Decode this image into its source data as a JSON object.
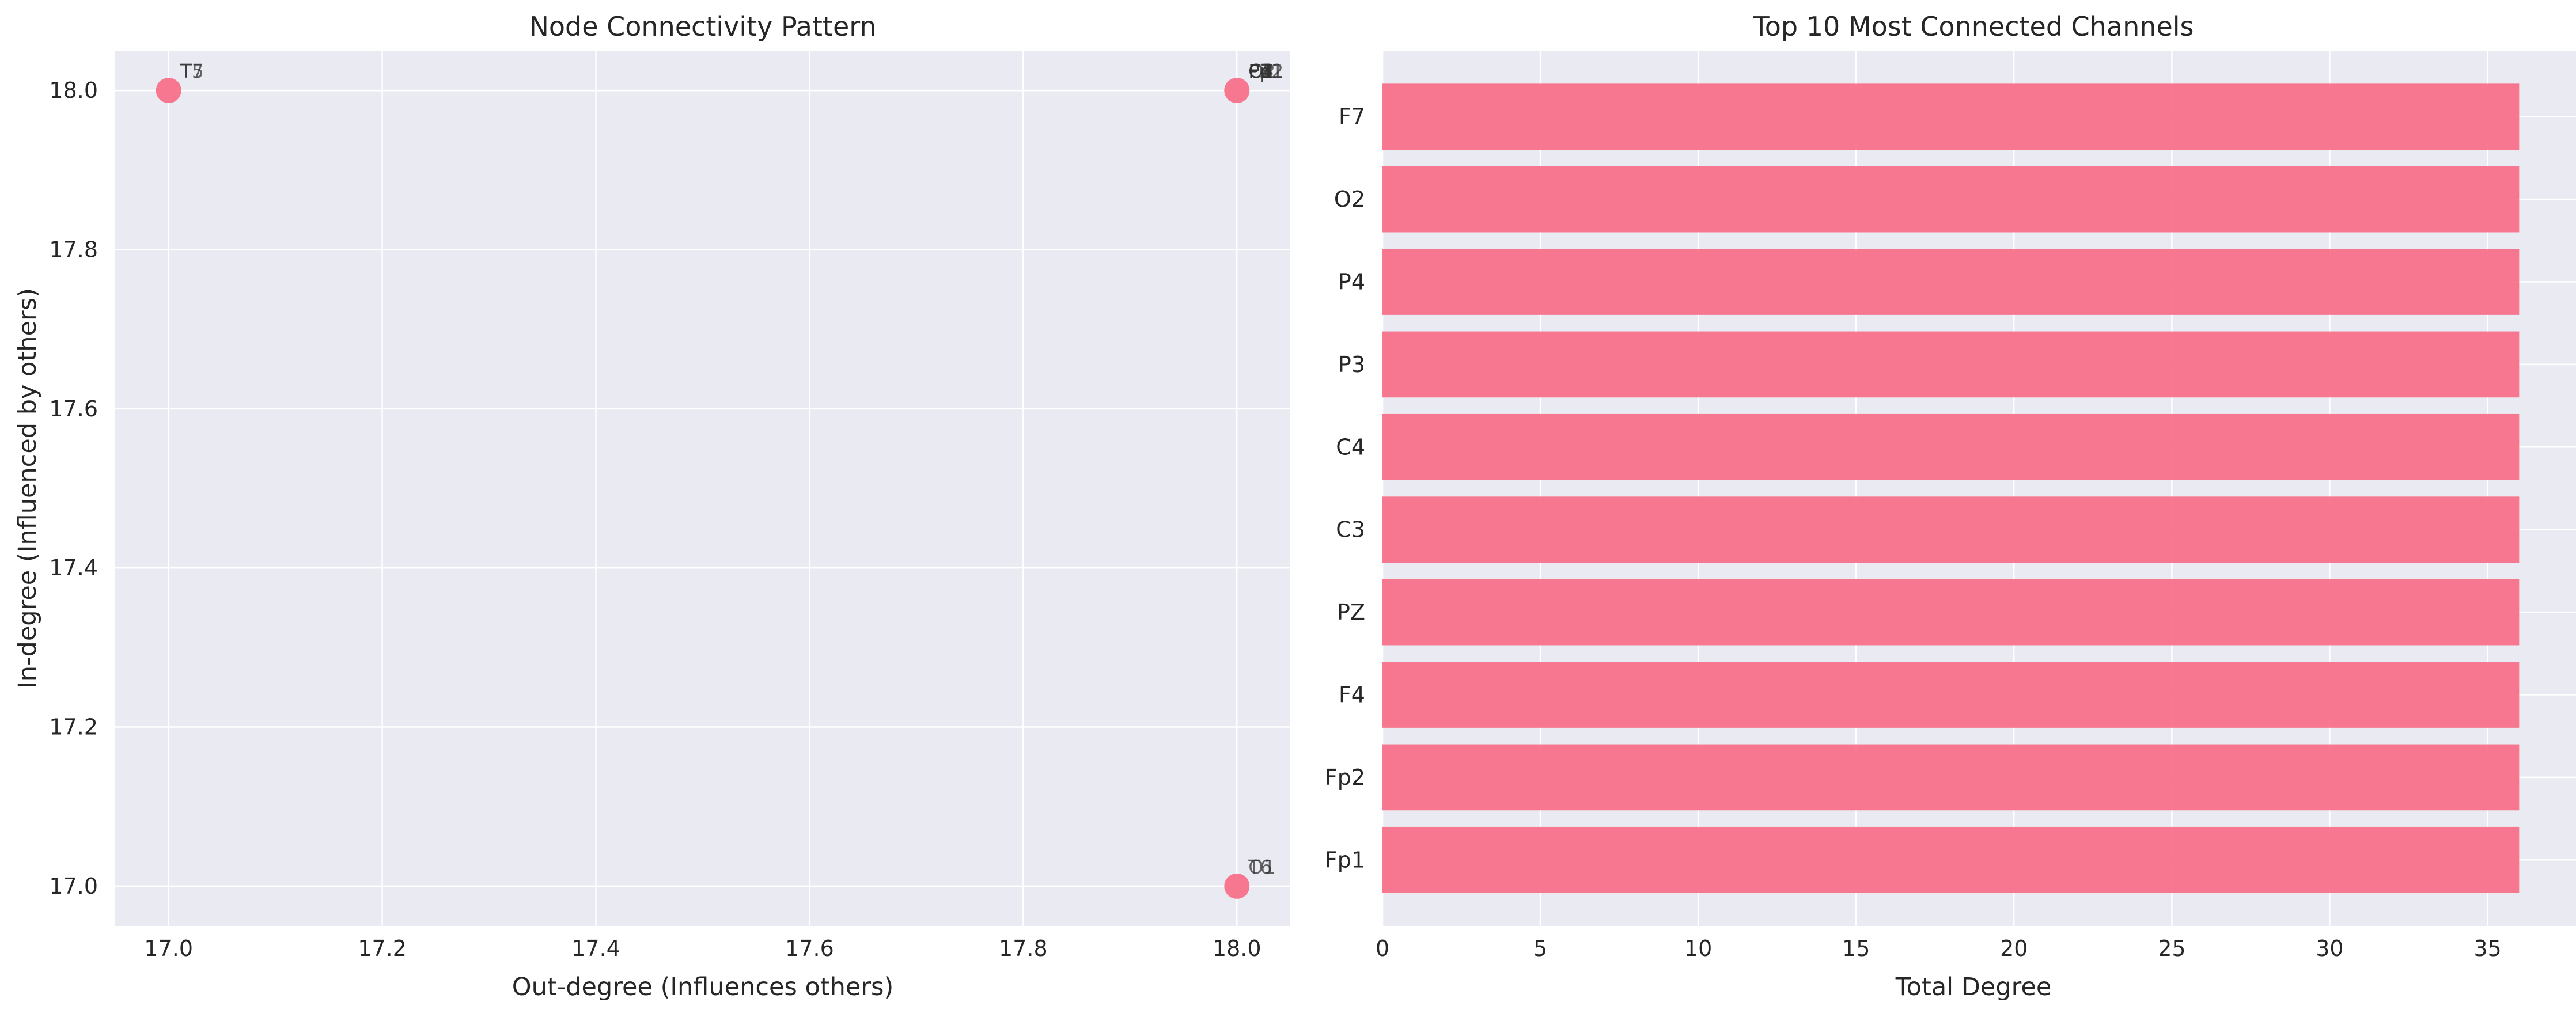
{
  "style": {
    "plot_bg": "#eaeaf2",
    "grid": "#ffffff",
    "accent": "#f77189"
  },
  "chart_data": [
    {
      "type": "scatter",
      "title": "Node Connectivity Pattern",
      "xlabel": "Out-degree (Influences others)",
      "ylabel": "In-degree (Influenced by others)",
      "xlim": [
        16.95,
        18.05
      ],
      "ylim": [
        16.95,
        18.05
      ],
      "xticks": [
        "17.0",
        "17.2",
        "17.4",
        "17.6",
        "17.8",
        "18.0"
      ],
      "yticks": [
        "17.0",
        "17.2",
        "17.4",
        "17.6",
        "17.8",
        "18.0"
      ],
      "grid": true,
      "points": [
        {
          "x": 17,
          "y": 18,
          "labels": [
            "T5",
            "T7"
          ]
        },
        {
          "x": 18,
          "y": 18,
          "labels": [
            "F7",
            "O2",
            "P4",
            "P3",
            "C4",
            "C3",
            "PZ",
            "F4",
            "Fp2",
            "Fp1"
          ]
        },
        {
          "x": 18,
          "y": 17,
          "labels": [
            "T6",
            "O1"
          ]
        }
      ]
    },
    {
      "type": "bar",
      "orientation": "horizontal",
      "title": "Top 10 Most Connected Channels",
      "xlabel": "Total Degree",
      "ylabel": "",
      "categories": [
        "Fp1",
        "Fp2",
        "F4",
        "PZ",
        "C3",
        "C4",
        "P3",
        "P4",
        "O2",
        "F7"
      ],
      "values": [
        36,
        36,
        36,
        36,
        36,
        36,
        36,
        36,
        36,
        36
      ],
      "xlim": [
        0,
        37.8
      ],
      "xticks": [
        "0",
        "5",
        "10",
        "15",
        "20",
        "25",
        "30",
        "35"
      ],
      "grid": true
    }
  ]
}
